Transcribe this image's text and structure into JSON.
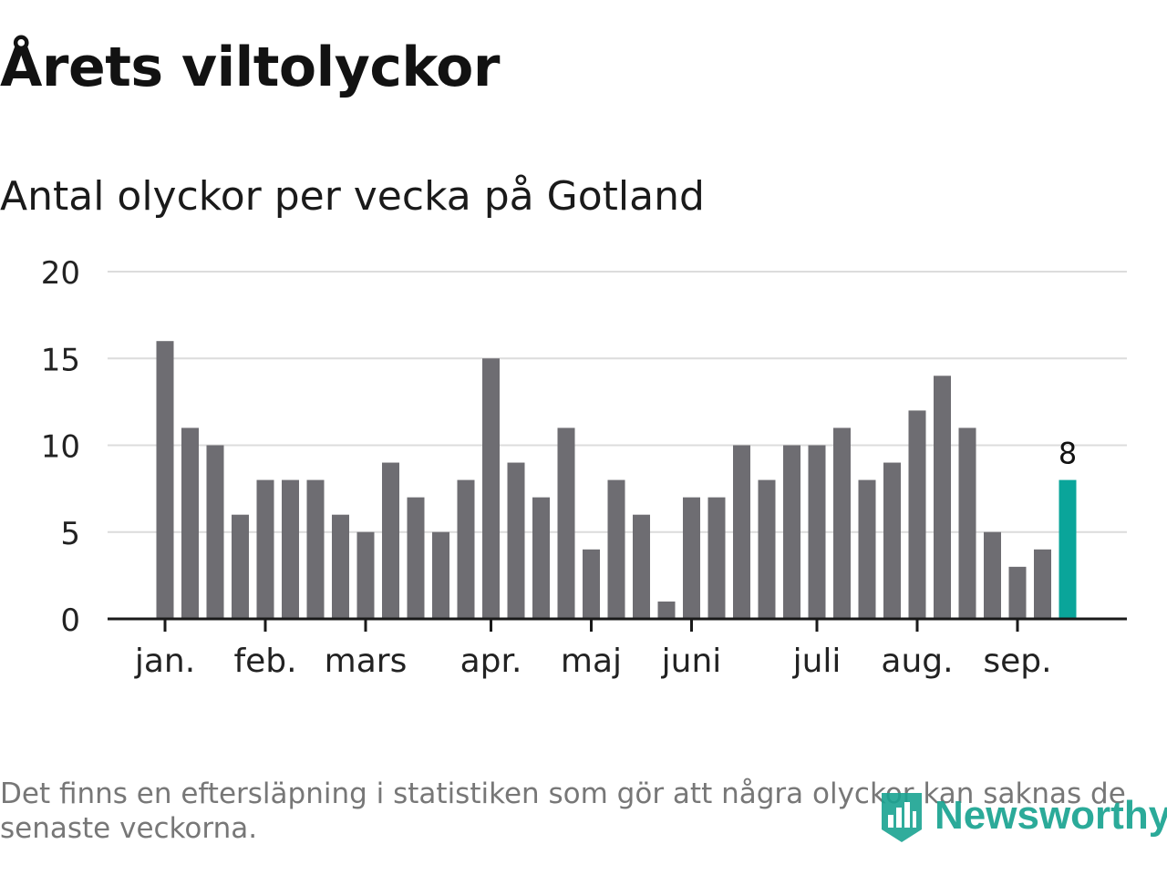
{
  "title": "Årets viltolyckor",
  "subtitle": "Antal olyckor per vecka på Gotland",
  "footnote": "Det finns en eftersläpning i statistiken som gör att några olyckor kan saknas de senaste veckorna.",
  "brand": {
    "name": "Newsworthy",
    "icon": "bar-chart-logo-icon"
  },
  "colors": {
    "bar": "#6e6d72",
    "highlight": "#0aa59a",
    "grid": "#dcdcdc",
    "axis": "#1a1a1a",
    "text": "#222222"
  },
  "chart_data": {
    "type": "bar",
    "title": "Antal olyckor per vecka på Gotland",
    "xlabel": "",
    "ylabel": "",
    "ylim": [
      0,
      20
    ],
    "yticks": [
      0,
      5,
      10,
      15,
      20
    ],
    "grid": true,
    "legend": "none",
    "values": [
      16,
      11,
      10,
      6,
      8,
      8,
      8,
      6,
      5,
      9,
      7,
      5,
      8,
      15,
      9,
      7,
      11,
      4,
      8,
      6,
      1,
      7,
      7,
      10,
      8,
      10,
      10,
      11,
      8,
      9,
      12,
      14,
      11,
      5,
      3,
      4,
      8
    ],
    "month_labels": [
      {
        "label": "jan.",
        "bar_index": 0
      },
      {
        "label": "feb.",
        "bar_index": 4
      },
      {
        "label": "mars",
        "bar_index": 8
      },
      {
        "label": "apr.",
        "bar_index": 13
      },
      {
        "label": "maj",
        "bar_index": 17
      },
      {
        "label": "juni",
        "bar_index": 21
      },
      {
        "label": "juli",
        "bar_index": 26
      },
      {
        "label": "aug.",
        "bar_index": 30
      },
      {
        "label": "sep.",
        "bar_index": 34
      }
    ],
    "highlight_index": 36,
    "highlight_label": "8"
  }
}
